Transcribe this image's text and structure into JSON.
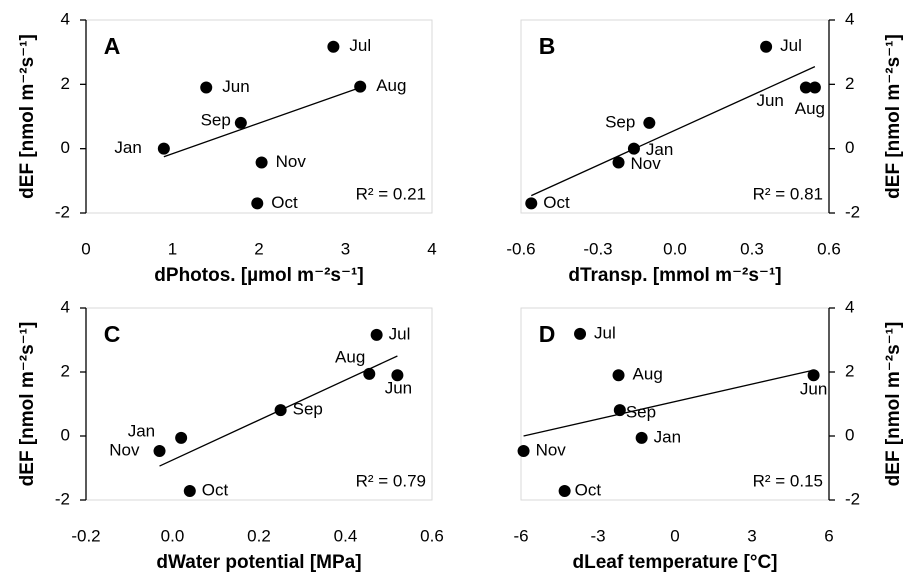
{
  "chart_data": [
    {
      "type": "scatter",
      "panel_label": "A",
      "x_label": "dPhotos. [µmol m⁻²s⁻¹]",
      "y_label": "dEF [nmol m⁻²s⁻¹]",
      "y_axis_side": "left",
      "annotation": "R² = 0.21",
      "color": "#000000",
      "point_labels": [
        "Jul",
        "Aug",
        "Jun",
        "Sep",
        "Jan",
        "Nov",
        "Oct"
      ],
      "x": [
        2.86,
        3.17,
        1.39,
        1.79,
        0.9,
        2.03,
        1.98
      ],
      "values": [
        3.17,
        1.93,
        1.9,
        0.8,
        0,
        -0.43,
        -1.7
      ],
      "trendline": {
        "x": [
          0.9,
          3.2
        ],
        "y": [
          -0.25,
          1.93
        ]
      },
      "xlim": [
        0,
        4
      ],
      "xticks": [
        0,
        1,
        2,
        3,
        4
      ],
      "ylim": [
        -2,
        4
      ],
      "yticks": [
        -2,
        0,
        2,
        4
      ]
    },
    {
      "type": "scatter",
      "panel_label": "B",
      "x_label": "dTransp. [mmol m⁻²s⁻¹]",
      "y_label": "dEF [nmol m⁻²s⁻¹]",
      "y_axis_side": "right",
      "annotation": "R² = 0.81",
      "color": "#000000",
      "point_labels": [
        "Jul",
        "Jun",
        "Aug",
        "Sep",
        "Jan",
        "Nov",
        "Oct"
      ],
      "x": [
        0.355,
        0.51,
        0.545,
        -0.1,
        -0.16,
        -0.22,
        -0.56
      ],
      "values": [
        3.17,
        1.9,
        1.9,
        0.8,
        0,
        -0.43,
        -1.7
      ],
      "trendline": {
        "x": [
          -0.56,
          0.545
        ],
        "y": [
          -1.46,
          2.55
        ]
      },
      "xlim": [
        -0.6,
        0.6
      ],
      "xticks": [
        -0.6,
        -0.3,
        {
          "value": 0,
          "label": "0.0"
        },
        0.3,
        0.6
      ],
      "ylim": [
        -2,
        4
      ],
      "yticks": [
        -2,
        0,
        2,
        4
      ]
    },
    {
      "type": "scatter",
      "panel_label": "C",
      "x_label": "dWater potential [MPa]",
      "y_label": "dEF [nmol m⁻²s⁻¹]",
      "y_axis_side": "left",
      "annotation": "R² = 0.79",
      "color": "#000000",
      "point_labels": [
        "Jul",
        "Aug",
        "Jun",
        "Sep",
        "Jan",
        "Nov",
        "Oct"
      ],
      "x": [
        0.472,
        0.455,
        0.52,
        0.25,
        0.02,
        -0.03,
        0.04
      ],
      "values": [
        3.16,
        1.94,
        1.9,
        0.81,
        -0.06,
        -0.47,
        -1.72
      ],
      "trendline": {
        "x": [
          -0.03,
          0.52
        ],
        "y": [
          -0.94,
          2.5
        ]
      },
      "xlim": [
        -0.2,
        0.6
      ],
      "xticks": [
        -0.2,
        {
          "value": 0,
          "label": "0.0"
        },
        0.2,
        0.4,
        0.6
      ],
      "ylim": [
        -2,
        4
      ],
      "yticks": [
        -2,
        0,
        2,
        4
      ]
    },
    {
      "type": "scatter",
      "panel_label": "D",
      "x_label": "dLeaf temperature [°C]",
      "y_label": "dEF [nmol m⁻²s⁻¹]",
      "y_axis_side": "right",
      "annotation": "R² = 0.15",
      "color": "#000000",
      "point_labels": [
        "Jul",
        "Aug",
        "Jun",
        "Sep",
        "Jan",
        "Nov",
        "Oct"
      ],
      "x": [
        -3.7,
        -2.2,
        5.4,
        -2.15,
        -1.3,
        -5.9,
        -4.3
      ],
      "values": [
        3.19,
        1.9,
        1.9,
        0.81,
        -0.06,
        -0.47,
        -1.72
      ],
      "trendline": {
        "x": [
          -5.9,
          5.4
        ],
        "y": [
          0,
          2.06
        ]
      },
      "xlim": [
        -6,
        6
      ],
      "xticks": [
        -6,
        -3,
        0,
        3,
        6
      ],
      "ylim": [
        -2,
        4
      ],
      "yticks": [
        -2,
        0,
        2,
        4
      ]
    }
  ]
}
